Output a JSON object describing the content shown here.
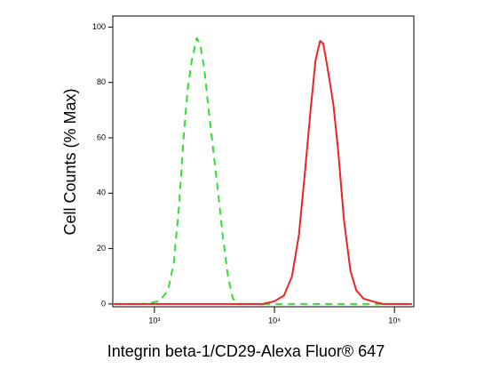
{
  "chart_data": {
    "type": "line",
    "xlabel": "Integrin beta-1/CD29-Alexa Fluor® 647",
    "ylabel": "Cell Counts (% Max)",
    "xscale": "log",
    "xlim": [
      450,
      145000
    ],
    "ylim": [
      -1,
      104
    ],
    "xticks": [
      {
        "value": 1000,
        "label": "10³"
      },
      {
        "value": 10000,
        "label": "10⁴"
      },
      {
        "value": 100000,
        "label": "10⁵"
      }
    ],
    "yticks": [
      0,
      20,
      40,
      60,
      80,
      100
    ],
    "series": [
      {
        "color": "#33dd33",
        "style": "dashed",
        "x": [
          460,
          800,
          1100,
          1300,
          1450,
          1600,
          1750,
          1900,
          2050,
          2250,
          2400,
          2600,
          2800,
          3100,
          3400,
          3700,
          4100,
          4500,
          5000,
          10000,
          50000,
          140000
        ],
        "values": [
          0,
          0,
          1,
          5,
          15,
          35,
          60,
          78,
          88,
          96,
          94,
          85,
          72,
          55,
          40,
          25,
          10,
          2,
          0,
          0,
          0,
          0
        ]
      },
      {
        "color": "#ee2222",
        "style": "solid",
        "x": [
          460,
          5000,
          8000,
          10000,
          12000,
          14000,
          16000,
          18000,
          20000,
          22000,
          24000,
          25500,
          27000,
          28500,
          31000,
          34000,
          38000,
          43000,
          48000,
          55000,
          65000,
          80000,
          140000
        ],
        "values": [
          0,
          0,
          0,
          1,
          3,
          10,
          25,
          48,
          70,
          88,
          95,
          94,
          88,
          82,
          72,
          55,
          30,
          12,
          5,
          2,
          1,
          0,
          0
        ]
      }
    ]
  }
}
